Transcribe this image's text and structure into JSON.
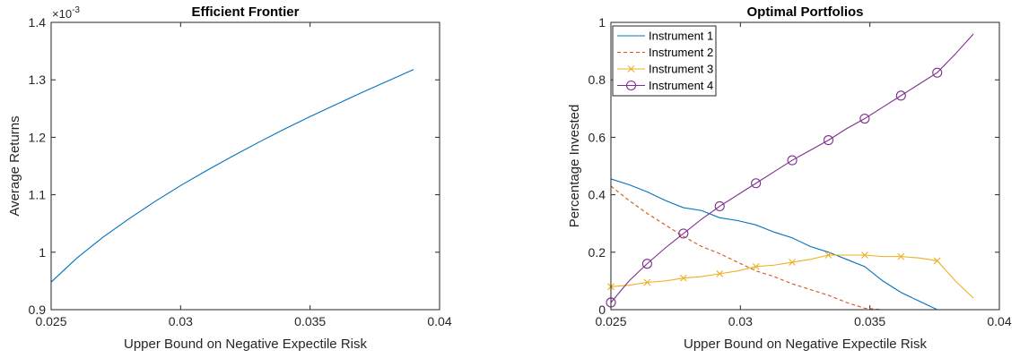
{
  "chart_data": [
    {
      "type": "line",
      "title": "Efficient Frontier",
      "xlabel": "Upper Bound on Negative Expectile Risk",
      "ylabel": "Average Returns",
      "y_exponent_label": "×10",
      "y_exponent_power": "-3",
      "xlim": [
        0.025,
        0.04
      ],
      "ylim": [
        0.9,
        1.4
      ],
      "xticks": [
        "0.025",
        "0.03",
        "0.035",
        "0.04"
      ],
      "yticks": [
        "0.9",
        "1",
        "1.1",
        "1.2",
        "1.3",
        "1.4"
      ],
      "series": [
        {
          "color": "#0072BD",
          "x": [
            0.025,
            0.026,
            0.027,
            0.028,
            0.029,
            0.03,
            0.031,
            0.032,
            0.033,
            0.034,
            0.035,
            0.036,
            0.037,
            0.038,
            0.039
          ],
          "y": [
            0.948,
            0.99,
            1.026,
            1.058,
            1.088,
            1.116,
            1.142,
            1.167,
            1.191,
            1.214,
            1.236,
            1.257,
            1.278,
            1.298,
            1.318
          ]
        }
      ]
    },
    {
      "type": "line",
      "title": "Optimal Portfolios",
      "xlabel": "Upper Bound on Negative Expectile Risk",
      "ylabel": "Percentage Invested",
      "xlim": [
        0.025,
        0.04
      ],
      "ylim": [
        0,
        1
      ],
      "xticks": [
        "0.025",
        "0.03",
        "0.035",
        "0.04"
      ],
      "yticks": [
        "0",
        "0.2",
        "0.4",
        "0.6",
        "0.8",
        "1"
      ],
      "legend_position": "top-left",
      "series": [
        {
          "name": "Instrument 1",
          "color": "#0072BD",
          "style": "solid",
          "marker": "none",
          "x": [
            0.025,
            0.0257,
            0.0264,
            0.0271,
            0.0278,
            0.0285,
            0.0292,
            0.0299,
            0.0306,
            0.0313,
            0.032,
            0.0327,
            0.0334,
            0.0341,
            0.0348,
            0.0355,
            0.0362,
            0.0369,
            0.0376,
            0.0383,
            0.039
          ],
          "y": [
            0.455,
            0.435,
            0.41,
            0.38,
            0.355,
            0.345,
            0.32,
            0.31,
            0.295,
            0.27,
            0.25,
            0.22,
            0.2,
            0.175,
            0.15,
            0.1,
            0.06,
            0.03,
            0.0,
            0.0,
            0.0
          ]
        },
        {
          "name": "Instrument 2",
          "color": "#D95319",
          "style": "dashed",
          "marker": "none",
          "x": [
            0.025,
            0.0257,
            0.0264,
            0.0271,
            0.0278,
            0.0285,
            0.0292,
            0.0299,
            0.0306,
            0.0313,
            0.032,
            0.0327,
            0.0334,
            0.0341,
            0.0348,
            0.0355,
            0.0362,
            0.0369,
            0.0376,
            0.0383,
            0.039
          ],
          "y": [
            0.43,
            0.38,
            0.335,
            0.295,
            0.255,
            0.22,
            0.195,
            0.165,
            0.135,
            0.115,
            0.09,
            0.07,
            0.05,
            0.025,
            0.005,
            0.0,
            0.0,
            0.0,
            0.0,
            0.0,
            0.0
          ]
        },
        {
          "name": "Instrument 3",
          "color": "#EDB120",
          "style": "solid",
          "marker": "x",
          "x": [
            0.025,
            0.0257,
            0.0264,
            0.0271,
            0.0278,
            0.0285,
            0.0292,
            0.0299,
            0.0306,
            0.0313,
            0.032,
            0.0327,
            0.0334,
            0.0341,
            0.0348,
            0.0355,
            0.0362,
            0.0369,
            0.0376,
            0.0383,
            0.039
          ],
          "y": [
            0.08,
            0.085,
            0.095,
            0.1,
            0.11,
            0.115,
            0.125,
            0.135,
            0.15,
            0.155,
            0.165,
            0.175,
            0.19,
            0.19,
            0.19,
            0.185,
            0.185,
            0.18,
            0.17,
            0.1,
            0.04
          ],
          "marker_x": [
            0.025,
            0.0264,
            0.0278,
            0.0292,
            0.0306,
            0.032,
            0.0334,
            0.0348,
            0.0362,
            0.0376
          ],
          "marker_y": [
            0.08,
            0.095,
            0.11,
            0.125,
            0.15,
            0.165,
            0.19,
            0.19,
            0.185,
            0.17
          ]
        },
        {
          "name": "Instrument 4",
          "color": "#7E2F8E",
          "style": "solid",
          "marker": "o",
          "x": [
            0.025,
            0.0257,
            0.0264,
            0.0271,
            0.0278,
            0.0285,
            0.0292,
            0.0299,
            0.0306,
            0.0313,
            0.032,
            0.0327,
            0.0334,
            0.0341,
            0.0348,
            0.0355,
            0.0362,
            0.0369,
            0.0376,
            0.0383,
            0.039
          ],
          "y": [
            0.025,
            0.1,
            0.16,
            0.215,
            0.265,
            0.315,
            0.36,
            0.4,
            0.44,
            0.48,
            0.52,
            0.555,
            0.59,
            0.63,
            0.665,
            0.705,
            0.745,
            0.785,
            0.825,
            0.89,
            0.96
          ],
          "marker_x": [
            0.025,
            0.0264,
            0.0278,
            0.0292,
            0.0306,
            0.032,
            0.0334,
            0.0348,
            0.0362,
            0.0376
          ],
          "marker_y": [
            0.025,
            0.16,
            0.265,
            0.36,
            0.44,
            0.52,
            0.59,
            0.665,
            0.745,
            0.825
          ]
        }
      ]
    }
  ]
}
